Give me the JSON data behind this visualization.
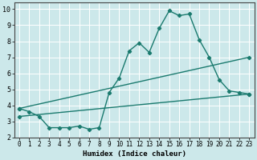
{
  "line1_x": [
    0,
    1,
    2,
    3,
    4,
    5,
    6,
    7,
    8,
    9,
    10,
    11,
    12,
    13,
    14,
    15,
    16,
    17,
    18,
    19,
    20,
    21,
    22,
    23
  ],
  "line1_y": [
    3.8,
    3.6,
    3.3,
    2.6,
    2.6,
    2.6,
    2.7,
    2.5,
    2.6,
    4.8,
    5.7,
    7.4,
    7.9,
    7.3,
    8.8,
    9.9,
    9.6,
    9.7,
    8.1,
    7.0,
    5.6,
    4.9,
    4.8,
    4.7
  ],
  "line2_x": [
    0,
    23
  ],
  "line2_y": [
    3.8,
    7.0
  ],
  "line3_x": [
    0,
    23
  ],
  "line3_y": [
    3.3,
    4.7
  ],
  "line_color": "#1a7a6e",
  "bg_color": "#cce8ea",
  "grid_color": "#ffffff",
  "xlabel": "Humidex (Indice chaleur)",
  "xlim": [
    -0.5,
    23.5
  ],
  "ylim": [
    2,
    10.4
  ],
  "yticks": [
    2,
    3,
    4,
    5,
    6,
    7,
    8,
    9,
    10
  ],
  "xticks": [
    0,
    1,
    2,
    3,
    4,
    5,
    6,
    7,
    8,
    9,
    10,
    11,
    12,
    13,
    14,
    15,
    16,
    17,
    18,
    19,
    20,
    21,
    22,
    23
  ],
  "xtick_labels": [
    "0",
    "1",
    "2",
    "3",
    "4",
    "5",
    "6",
    "7",
    "8",
    "9",
    "10",
    "11",
    "12",
    "13",
    "14",
    "15",
    "16",
    "17",
    "18",
    "19",
    "20",
    "21",
    "22",
    "23"
  ],
  "marker": "D",
  "marker_size": 2.2,
  "linewidth": 1.0,
  "xlabel_fontsize": 6.5,
  "tick_fontsize": 5.5
}
